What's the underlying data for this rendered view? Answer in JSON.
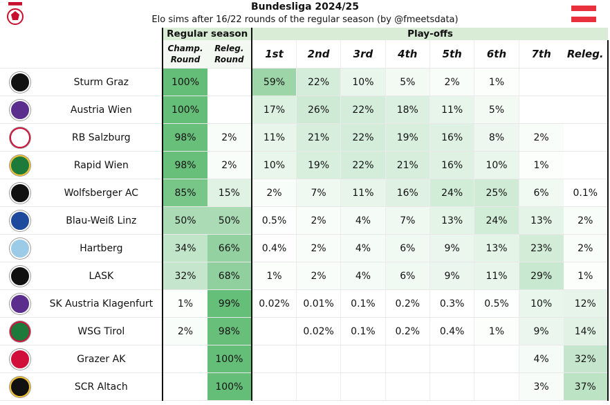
{
  "header": {
    "title": "Bundesliga 2024/25",
    "subtitle": "Elo sims after 16/22 rounds of the regular season (by @fmeetsdata)"
  },
  "groups": {
    "regular": "Regular season",
    "playoffs": "Play-offs"
  },
  "columns": {
    "champ": [
      "Champ.",
      "Round"
    ],
    "releg": [
      "Releg.",
      "Round"
    ],
    "playoffs": [
      "1st",
      "2nd",
      "3rd",
      "4th",
      "5th",
      "6th",
      "7th",
      "Releg."
    ]
  },
  "colors": {
    "accent": "#3fae57",
    "flag_red": "#e8313c"
  },
  "teams": [
    {
      "name": "Sturm Graz",
      "logo": "sturm-graz-logo",
      "rs": [
        100,
        null
      ],
      "po": [
        59,
        22,
        10,
        5,
        2,
        1,
        null,
        null
      ]
    },
    {
      "name": "Austria Wien",
      "logo": "austria-wien-logo",
      "rs": [
        100,
        null
      ],
      "po": [
        17,
        26,
        22,
        18,
        11,
        5,
        null,
        null
      ]
    },
    {
      "name": "RB Salzburg",
      "logo": "rb-salzburg-logo",
      "rs": [
        98,
        2
      ],
      "po": [
        11,
        21,
        22,
        19,
        16,
        8,
        2,
        null
      ]
    },
    {
      "name": "Rapid Wien",
      "logo": "rapid-wien-logo",
      "rs": [
        98,
        2
      ],
      "po": [
        10,
        19,
        22,
        21,
        16,
        10,
        1,
        null
      ]
    },
    {
      "name": "Wolfsberger AC",
      "logo": "wolfsberger-ac-logo",
      "rs": [
        85,
        15
      ],
      "po": [
        2,
        7,
        11,
        16,
        24,
        25,
        6,
        0.1
      ]
    },
    {
      "name": "Blau-Weiß Linz",
      "logo": "blau-weiss-linz-logo",
      "rs": [
        50,
        50
      ],
      "po": [
        0.5,
        2,
        4,
        7,
        13,
        24,
        13,
        2
      ]
    },
    {
      "name": "Hartberg",
      "logo": "hartberg-logo",
      "rs": [
        34,
        66
      ],
      "po": [
        0.4,
        2,
        4,
        6,
        9,
        13,
        23,
        2
      ]
    },
    {
      "name": "LASK",
      "logo": "lask-logo",
      "rs": [
        32,
        68
      ],
      "po": [
        1,
        2,
        4,
        6,
        9,
        11,
        29,
        1
      ]
    },
    {
      "name": "SK Austria Klagenfurt",
      "logo": "klagenfurt-logo",
      "rs": [
        1,
        99
      ],
      "po": [
        0.02,
        0.01,
        0.1,
        0.2,
        0.3,
        0.5,
        10,
        12
      ]
    },
    {
      "name": "WSG Tirol",
      "logo": "wsg-tirol-logo",
      "rs": [
        2,
        98
      ],
      "po": [
        null,
        0.02,
        0.1,
        0.2,
        0.4,
        1,
        9,
        14
      ]
    },
    {
      "name": "Grazer AK",
      "logo": "grazer-ak-logo",
      "rs": [
        null,
        100
      ],
      "po": [
        null,
        null,
        null,
        null,
        null,
        null,
        4,
        32
      ]
    },
    {
      "name": "SCR Altach",
      "logo": "scr-altach-logo",
      "rs": [
        null,
        100
      ],
      "po": [
        null,
        null,
        null,
        null,
        null,
        null,
        3,
        37
      ]
    }
  ]
}
